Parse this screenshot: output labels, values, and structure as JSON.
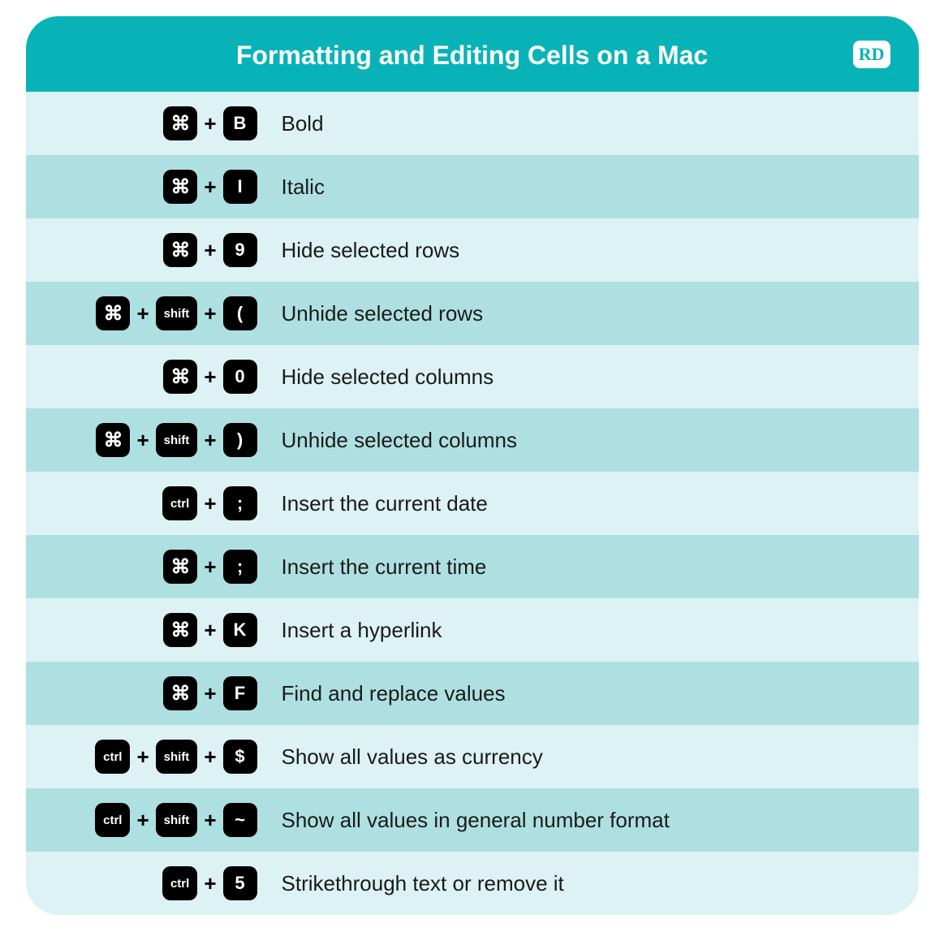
{
  "title": "Formatting and Editing Cells on a Mac",
  "logo": "RD",
  "colors": {
    "header_bg": "#08b3b8",
    "header_text": "#ffffff",
    "row_light": "#ddf2f4",
    "row_dark": "#aee0e1",
    "key_bg": "#000000",
    "key_text": "#ffffff",
    "desc_text": "#1a1a1a"
  },
  "layout": {
    "container_width": 1100,
    "border_radius": 40,
    "keys_col_width": 255
  },
  "typography": {
    "title_size": 32,
    "desc_size": 26,
    "key_letter_size": 22,
    "key_word_size": 15
  },
  "key_glyphs": {
    "cmd": "⌘",
    "shift": "shift",
    "ctrl": "ctrl"
  },
  "plus": "+",
  "rows": [
    {
      "keys": [
        "cmd",
        "B"
      ],
      "desc": "Bold"
    },
    {
      "keys": [
        "cmd",
        "I"
      ],
      "desc": "Italic"
    },
    {
      "keys": [
        "cmd",
        "9"
      ],
      "desc": "Hide selected rows"
    },
    {
      "keys": [
        "cmd",
        "shift",
        "("
      ],
      "desc": "Unhide selected rows"
    },
    {
      "keys": [
        "cmd",
        "0"
      ],
      "desc": "Hide selected columns"
    },
    {
      "keys": [
        "cmd",
        "shift",
        ")"
      ],
      "desc": "Unhide selected columns"
    },
    {
      "keys": [
        "ctrl",
        ";"
      ],
      "desc": "Insert the current date"
    },
    {
      "keys": [
        "cmd",
        ";"
      ],
      "desc": "Insert the current time"
    },
    {
      "keys": [
        "cmd",
        "K"
      ],
      "desc": "Insert a hyperlink"
    },
    {
      "keys": [
        "cmd",
        "F"
      ],
      "desc": "Find and replace values"
    },
    {
      "keys": [
        "ctrl",
        "shift",
        "$"
      ],
      "desc": "Show all values as currency"
    },
    {
      "keys": [
        "ctrl",
        "shift",
        "~"
      ],
      "desc": "Show all values in general number format"
    },
    {
      "keys": [
        "ctrl",
        "5"
      ],
      "desc": "Strikethrough text or remove it"
    }
  ]
}
